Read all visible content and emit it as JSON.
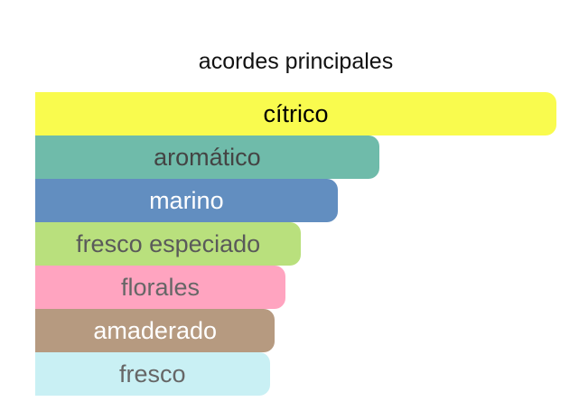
{
  "chart_data": {
    "type": "bar",
    "orientation": "horizontal",
    "title": "acordes principales",
    "unit": "percent of strongest accord",
    "categories": [
      "cítrico",
      "aromático",
      "marino",
      "fresco especiado",
      "florales",
      "amaderado",
      "fresco"
    ],
    "values": [
      100,
      66,
      58,
      51,
      48,
      46,
      45
    ],
    "colors": [
      "#f9fb4e",
      "#6fbbaa",
      "#628ec0",
      "#b9e07d",
      "#ffa4c0",
      "#b69a80",
      "#c9f0f4"
    ],
    "label_colors": [
      "#000000",
      "#444444",
      "#ffffff",
      "#5a5a5a",
      "#666666",
      "#ffffff",
      "#666666"
    ],
    "grid": false
  }
}
